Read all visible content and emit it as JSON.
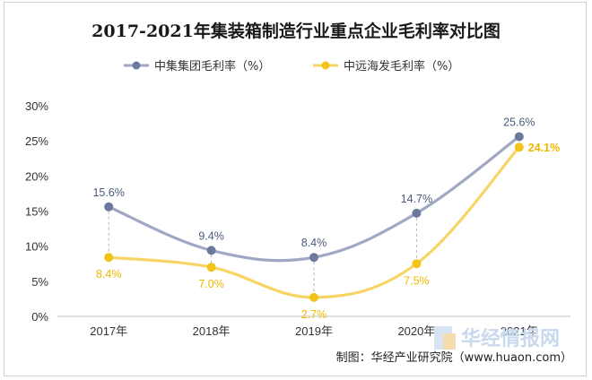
{
  "chart_data": {
    "type": "line",
    "title": "2017-2021年集装箱制造行业重点企业毛利率对比图",
    "categories": [
      "2017年",
      "2018年",
      "2019年",
      "2020年",
      "2021年"
    ],
    "series": [
      {
        "name": "中集集团毛利率（%）",
        "values": [
          15.6,
          9.4,
          8.4,
          14.7,
          25.6
        ],
        "labels": [
          "15.6%",
          "9.4%",
          "8.4%",
          "14.7%",
          "25.6%"
        ],
        "color": "#a0a8c4",
        "marker_color": "#6b7a9c",
        "label_color": "#4a5a7a"
      },
      {
        "name": "中远海发毛利率（%）",
        "values": [
          8.4,
          7.0,
          2.7,
          7.5,
          24.1
        ],
        "labels": [
          "8.4%",
          "7.0%",
          "2.7%",
          "7.5%",
          "24.1%"
        ],
        "color": "#f7d564",
        "marker_color": "#f2c318",
        "label_color": "#efb800"
      }
    ],
    "ylim": [
      0,
      30
    ],
    "yticks": [
      "0%",
      "5%",
      "10%",
      "15%",
      "20%",
      "25%",
      "30%"
    ],
    "ytick_values": [
      0,
      5,
      10,
      15,
      20,
      25,
      30
    ],
    "grid": false,
    "legend": "top-center"
  },
  "source_text": "制图：华经产业研究院（www.huaon.com）",
  "watermark_text": "华经情报网"
}
